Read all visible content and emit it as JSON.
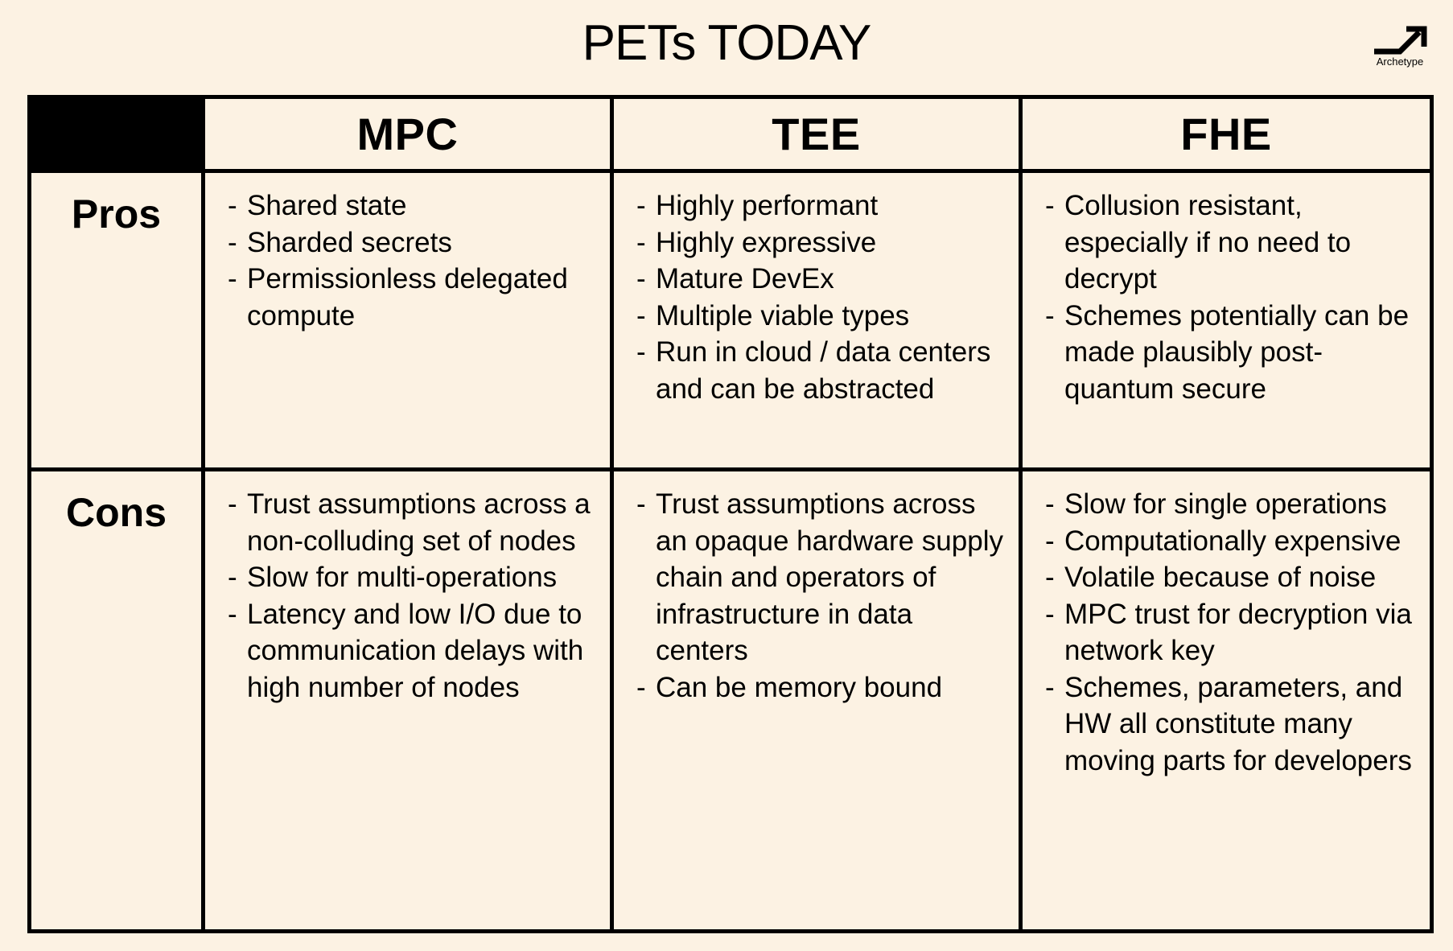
{
  "title": "PETs TODAY",
  "logo": {
    "name": "Archetype"
  },
  "columns": [
    "MPC",
    "TEE",
    "FHE"
  ],
  "rows": [
    {
      "label": "Pros",
      "cells": [
        [
          "Shared state",
          "Sharded secrets",
          "Permissionless delegated compute"
        ],
        [
          "Highly performant",
          "Highly expressive",
          "Mature DevEx",
          "Multiple viable types",
          "Run in cloud / data centers and can be abstracted"
        ],
        [
          "Collusion resistant, especially if no need to decrypt",
          "Schemes potentially can be made plausibly post-quantum secure"
        ]
      ]
    },
    {
      "label": "Cons",
      "cells": [
        [
          "Trust assumptions across a non-colluding set of nodes",
          "Slow for multi-operations",
          "Latency and low I/O due to communication delays with high number of nodes"
        ],
        [
          "Trust assumptions across an opaque hardware supply chain and operators of infrastructure in data centers",
          "Can be memory bound"
        ],
        [
          "Slow for single operations",
          "Computationally expensive",
          "Volatile because of noise",
          "MPC trust for decryption via network key",
          "Schemes, parameters, and HW all constitute many moving parts for developers"
        ]
      ]
    }
  ]
}
